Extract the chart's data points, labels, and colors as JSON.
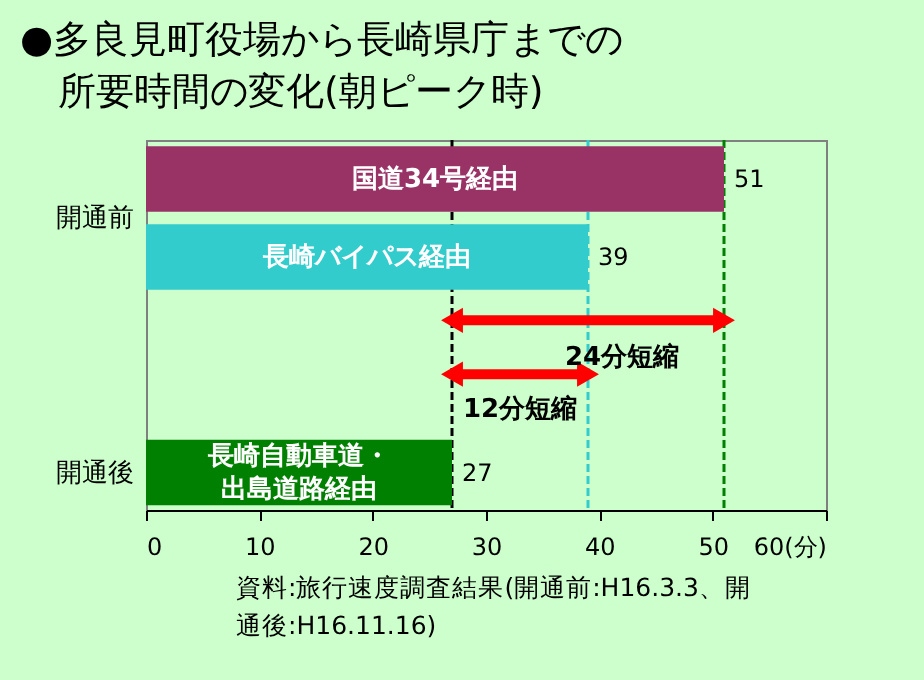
{
  "chart_data": {
    "type": "bar",
    "orientation": "horizontal",
    "title": "●多良見町役場から長崎県庁までの所要時間の変化(朝ピーク時)",
    "categories": [
      "国道34号経由",
      "長崎バイパス経由",
      "長崎自動車道・出島道路経由"
    ],
    "values": [
      51,
      39,
      27
    ],
    "colors": [
      "#993366",
      "#33cccc",
      "#008000"
    ],
    "data_labels": true,
    "xlim": [
      0,
      60
    ],
    "xticks": [
      0,
      10,
      20,
      30,
      40,
      50,
      {
        "value": 60,
        "label": "60(分)"
      }
    ],
    "ref_lines": [
      {
        "axis": "x",
        "value": 27,
        "color": "#000000",
        "line_style": "dashed"
      },
      {
        "axis": "x",
        "value": 39,
        "color": "#33cccc",
        "line_style": "dashed"
      },
      {
        "axis": "x",
        "value": 51,
        "color": "#008000",
        "line_style": "dashed"
      }
    ],
    "annotations": [
      "開通前",
      "開通後",
      "24分短縮",
      "12分短縮",
      "資料:旅行速度調査結果(開通前:H16.3.3、開通後:H16.11.16)"
    ],
    "grid": false
  }
}
